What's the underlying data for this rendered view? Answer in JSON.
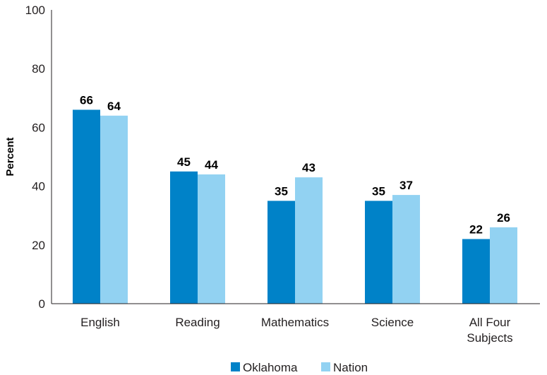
{
  "chart_data": {
    "type": "bar",
    "categories": [
      "English",
      "Reading",
      "Mathematics",
      "Science",
      "All Four Subjects"
    ],
    "category_lines": [
      [
        "English"
      ],
      [
        "Reading"
      ],
      [
        "Mathematics"
      ],
      [
        "Science"
      ],
      [
        "All Four",
        "Subjects"
      ]
    ],
    "series": [
      {
        "name": "Oklahoma",
        "values": [
          66,
          45,
          35,
          35,
          22
        ],
        "color": "#0082c8"
      },
      {
        "name": "Nation",
        "values": [
          64,
          44,
          43,
          37,
          26
        ],
        "color": "#92d2f2"
      }
    ],
    "title": "",
    "xlabel": "",
    "ylabel": "Percent",
    "ylim": [
      0,
      100
    ],
    "yticks": [
      0,
      20,
      40,
      60,
      80,
      100
    ],
    "grid": false,
    "legend_position": "bottom-center",
    "data_labels": true
  }
}
